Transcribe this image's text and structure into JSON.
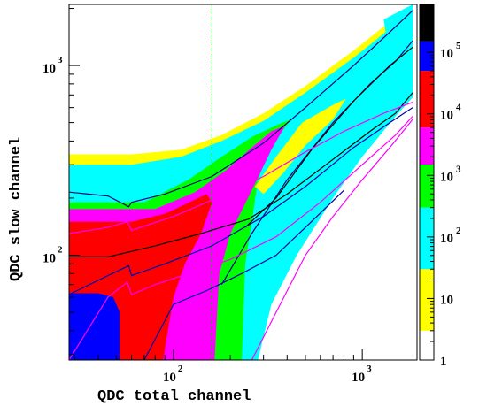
{
  "chart_data": {
    "type": "heatmap",
    "xlabel": "QDC total channel",
    "ylabel": "QDC slow channel",
    "xscale": "log",
    "yscale": "log",
    "xlim": [
      28,
      1950
    ],
    "ylim": [
      28,
      2100
    ],
    "x_ticks": [
      {
        "base": "10",
        "exp": "2",
        "value": 100
      },
      {
        "base": "10",
        "exp": "3",
        "value": 1000
      }
    ],
    "y_ticks": [
      {
        "base": "10",
        "exp": "2",
        "value": 100
      },
      {
        "base": "10",
        "exp": "3",
        "value": 1000
      }
    ],
    "colorbar": {
      "scale": "log",
      "range": [
        1,
        600000
      ],
      "labels": [
        {
          "text": "1",
          "base": "1",
          "exp": "",
          "value": 1
        },
        {
          "text": "10",
          "base": "10",
          "exp": "",
          "value": 10
        },
        {
          "text": "10^2",
          "base": "10",
          "exp": "2",
          "value": 100
        },
        {
          "text": "10^3",
          "base": "10",
          "exp": "3",
          "value": 1000
        },
        {
          "text": "10^4",
          "base": "10",
          "exp": "4",
          "value": 10000
        },
        {
          "text": "10^5",
          "base": "10",
          "exp": "5",
          "value": 100000
        }
      ],
      "levels": [
        {
          "from": 1,
          "to": 3,
          "color": "#ffffff"
        },
        {
          "from": 3,
          "to": 30,
          "color": "#ffff00"
        },
        {
          "from": 30,
          "to": 300,
          "color": "#00ffff"
        },
        {
          "from": 300,
          "to": 1500,
          "color": "#00ff00"
        },
        {
          "from": 1500,
          "to": 6000,
          "color": "#ff00ff"
        },
        {
          "from": 6000,
          "to": 50000,
          "color": "#ff0000"
        },
        {
          "from": 50000,
          "to": 150000,
          "color": "#0000ff"
        },
        {
          "from": 150000,
          "to": 600000,
          "color": "#000000"
        }
      ]
    },
    "bands": [
      {
        "color": "#ffff00",
        "points": [
          [
            28,
            340
          ],
          [
            60,
            340
          ],
          [
            110,
            360
          ],
          [
            180,
            430
          ],
          [
            300,
            560
          ],
          [
            500,
            780
          ],
          [
            900,
            1200
          ],
          [
            1500,
            1800
          ],
          [
            1850,
            2100
          ],
          [
            1850,
            720
          ],
          [
            1500,
            560
          ],
          [
            1000,
            360
          ],
          [
            600,
            180
          ],
          [
            350,
            95
          ],
          [
            250,
            55
          ],
          [
            200,
            28
          ],
          [
            28,
            28
          ]
        ]
      },
      {
        "color": "#00ffff",
        "points": [
          [
            28,
            300
          ],
          [
            60,
            300
          ],
          [
            110,
            330
          ],
          [
            180,
            400
          ],
          [
            300,
            510
          ],
          [
            500,
            720
          ],
          [
            900,
            1100
          ],
          [
            1500,
            1650
          ],
          [
            1850,
            1950
          ],
          [
            1850,
            680
          ],
          [
            1500,
            540
          ],
          [
            1000,
            330
          ],
          [
            700,
            200
          ],
          [
            450,
            100
          ],
          [
            330,
            55
          ],
          [
            280,
            28
          ],
          [
            28,
            28
          ]
        ]
      },
      {
        "color": "#00ff00",
        "points": [
          [
            28,
            190
          ],
          [
            70,
            190
          ],
          [
            120,
            250
          ],
          [
            180,
            330
          ],
          [
            260,
            420
          ],
          [
            360,
            490
          ],
          [
            420,
            520
          ],
          [
            330,
            380
          ],
          [
            280,
            250
          ],
          [
            260,
            150
          ],
          [
            240,
            90
          ],
          [
            230,
            28
          ],
          [
            28,
            28
          ]
        ]
      },
      {
        "color": "#ff00ff",
        "points": [
          [
            28,
            175
          ],
          [
            80,
            175
          ],
          [
            130,
            215
          ],
          [
            190,
            280
          ],
          [
            260,
            370
          ],
          [
            330,
            450
          ],
          [
            390,
            480
          ],
          [
            330,
            360
          ],
          [
            260,
            220
          ],
          [
            200,
            130
          ],
          [
            175,
            80
          ],
          [
            165,
            28
          ],
          [
            28,
            28
          ]
        ]
      },
      {
        "color": "#ff0000",
        "points": [
          [
            28,
            150
          ],
          [
            60,
            150
          ],
          [
            90,
            165
          ],
          [
            115,
            185
          ],
          [
            150,
            210
          ],
          [
            160,
            190
          ],
          [
            140,
            130
          ],
          [
            115,
            90
          ],
          [
            100,
            60
          ],
          [
            88,
            28
          ],
          [
            28,
            28
          ]
        ]
      },
      {
        "color": "#0000ff",
        "points": [
          [
            28,
            63
          ],
          [
            40,
            63
          ],
          [
            48,
            60
          ],
          [
            52,
            50
          ],
          [
            52,
            28
          ],
          [
            28,
            28
          ]
        ]
      },
      {
        "color": "#ffff00",
        "points": [
          [
            270,
            230
          ],
          [
            350,
            330
          ],
          [
            480,
            500
          ],
          [
            700,
            620
          ],
          [
            820,
            670
          ],
          [
            700,
            520
          ],
          [
            500,
            380
          ],
          [
            380,
            270
          ],
          [
            300,
            210
          ]
        ]
      },
      {
        "color": "#00ffff",
        "points": [
          [
            1300,
            1750
          ],
          [
            1850,
            2100
          ],
          [
            1850,
            1300
          ],
          [
            1400,
            1050
          ]
        ]
      }
    ],
    "curves": [
      {
        "color": "#000000",
        "points": [
          [
            28,
            98
          ],
          [
            45,
            98
          ],
          [
            80,
            112
          ],
          [
            140,
            130
          ],
          [
            250,
            155
          ],
          [
            400,
            210
          ],
          [
            700,
            320
          ],
          [
            1100,
            450
          ],
          [
            1500,
            560
          ],
          [
            1850,
            720
          ]
        ]
      },
      {
        "color": "#000080",
        "points": [
          [
            28,
            215
          ],
          [
            45,
            205
          ],
          [
            58,
            180
          ],
          [
            60,
            190
          ],
          [
            90,
            210
          ],
          [
            160,
            260
          ],
          [
            300,
            390
          ],
          [
            500,
            600
          ],
          [
            900,
            1000
          ],
          [
            1400,
            1500
          ],
          [
            1850,
            1950
          ]
        ]
      },
      {
        "color": "#000080",
        "points": [
          [
            180,
            70
          ],
          [
            260,
            130
          ],
          [
            400,
            250
          ],
          [
            700,
            500
          ],
          [
            1100,
            800
          ],
          [
            1500,
            1050
          ],
          [
            1850,
            1350
          ]
        ]
      },
      {
        "color": "#000000",
        "points": [
          [
            240,
            140
          ],
          [
            350,
            200
          ],
          [
            550,
            370
          ],
          [
            900,
            650
          ],
          [
            1400,
            1000
          ],
          [
            1850,
            1250
          ]
        ]
      },
      {
        "color": "#0000aa",
        "points": [
          [
            28,
            62
          ],
          [
            45,
            78
          ],
          [
            58,
            88
          ],
          [
            60,
            78
          ],
          [
            90,
            90
          ],
          [
            160,
            112
          ],
          [
            300,
            160
          ],
          [
            500,
            230
          ],
          [
            900,
            370
          ],
          [
            1400,
            500
          ],
          [
            1850,
            600
          ]
        ]
      },
      {
        "color": "#ff00ff",
        "points": [
          [
            28,
            28
          ],
          [
            45,
            60
          ],
          [
            57,
            72
          ],
          [
            60,
            62
          ],
          [
            80,
            70
          ],
          [
            120,
            80
          ],
          [
            200,
            95
          ],
          [
            350,
            125
          ],
          [
            600,
            190
          ],
          [
            1000,
            300
          ],
          [
            1500,
            430
          ],
          [
            1850,
            540
          ]
        ]
      },
      {
        "color": "#ff00ff",
        "points": [
          [
            28,
            130
          ],
          [
            45,
            140
          ],
          [
            57,
            150
          ],
          [
            60,
            135
          ],
          [
            100,
            160
          ],
          [
            180,
            205
          ],
          [
            300,
            260
          ],
          [
            500,
            350
          ],
          [
            800,
            450
          ],
          [
            1300,
            560
          ],
          [
            1850,
            640
          ]
        ]
      },
      {
        "color": "#ff00ff",
        "points": [
          [
            260,
            28
          ],
          [
            350,
            50
          ],
          [
            500,
            100
          ],
          [
            700,
            160
          ],
          [
            1000,
            250
          ],
          [
            1400,
            370
          ],
          [
            1850,
            520
          ]
        ]
      },
      {
        "color": "#0000aa",
        "points": [
          [
            70,
            28
          ],
          [
            100,
            55
          ],
          [
            150,
            65
          ],
          [
            230,
            80
          ],
          [
            350,
            100
          ],
          [
            500,
            140
          ],
          [
            800,
            220
          ]
        ]
      }
    ],
    "vline": {
      "x": 160,
      "color": "#00cc00",
      "style": "dashed"
    }
  }
}
